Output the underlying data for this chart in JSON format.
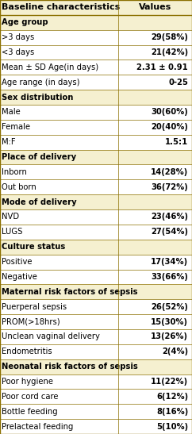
{
  "header": [
    "Baseline characteristics",
    "Values"
  ],
  "rows": [
    {
      "label": "Age group",
      "value": "",
      "is_section": true
    },
    {
      "label": ">3 days",
      "value": "29(58%)",
      "is_section": false
    },
    {
      "label": "<3 days",
      "value": "21(42%)",
      "is_section": false
    },
    {
      "label": "Mean ± SD Age(in days)",
      "value": "2.31 ± 0.91",
      "is_section": false
    },
    {
      "label": "Age range (in days)",
      "value": "0-25",
      "is_section": false
    },
    {
      "label": "Sex distribution",
      "value": "",
      "is_section": true
    },
    {
      "label": "Male",
      "value": "30(60%)",
      "is_section": false
    },
    {
      "label": "Female",
      "value": "20(40%)",
      "is_section": false
    },
    {
      "label": "M:F",
      "value": "1.5:1",
      "is_section": false
    },
    {
      "label": "Place of delivery",
      "value": "",
      "is_section": true
    },
    {
      "label": "Inborn",
      "value": "14(28%)",
      "is_section": false
    },
    {
      "label": "Out born",
      "value": "36(72%)",
      "is_section": false
    },
    {
      "label": "Mode of delivery",
      "value": "",
      "is_section": true
    },
    {
      "label": "NVD",
      "value": "23(46%)",
      "is_section": false
    },
    {
      "label": "LUGS",
      "value": "27(54%)",
      "is_section": false
    },
    {
      "label": "Culture status",
      "value": "",
      "is_section": true
    },
    {
      "label": "Positive",
      "value": "17(34%)",
      "is_section": false
    },
    {
      "label": "Negative",
      "value": "33(66%)",
      "is_section": false
    },
    {
      "label": "Maternal risk factors of sepsis",
      "value": "",
      "is_section": true
    },
    {
      "label": "Puerperal sepsis",
      "value": "26(52%)",
      "is_section": false
    },
    {
      "label": "PROM(>18hrs)",
      "value": "15(30%)",
      "is_section": false
    },
    {
      "label": "Unclean vaginal delivery",
      "value": "13(26%)",
      "is_section": false
    },
    {
      "label": "Endometritis",
      "value": "2(4%)",
      "is_section": false
    },
    {
      "label": "Neonatal risk factors of sepsis",
      "value": "",
      "is_section": true
    },
    {
      "label": "Poor hygiene",
      "value": "11(22%)",
      "is_section": false
    },
    {
      "label": "Poor cord care",
      "value": "6(12%)",
      "is_section": false
    },
    {
      "label": "Bottle feeding",
      "value": "8(16%)",
      "is_section": false
    },
    {
      "label": "Prelacteal feeding",
      "value": "5(10%)",
      "is_section": false
    }
  ],
  "header_bg": "#f5f0d0",
  "header_text_color": "#000000",
  "section_bg": "#f5f0d0",
  "data_row_bg": "#ffffff",
  "border_color": "#8B7000",
  "text_color": "#000000",
  "font_size": 7.2,
  "header_font_size": 8.0,
  "col_split": 0.615,
  "fig_width": 2.42,
  "fig_height": 5.47,
  "dpi": 100
}
